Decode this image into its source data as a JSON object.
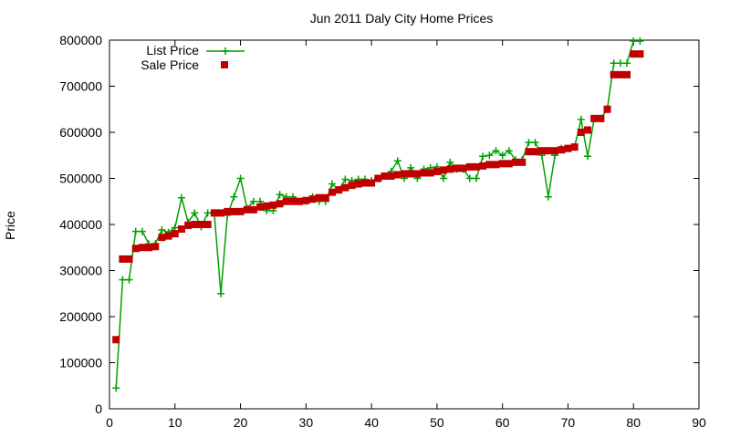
{
  "chart_data": {
    "type": "line",
    "title": "Jun 2011 Daly City Home Prices",
    "xlabel": "",
    "ylabel": "Price",
    "xlim": [
      0,
      90
    ],
    "ylim": [
      0,
      800000
    ],
    "xticks": [
      0,
      10,
      20,
      30,
      40,
      50,
      60,
      70,
      80,
      90
    ],
    "yticks": [
      0,
      100000,
      200000,
      300000,
      400000,
      500000,
      600000,
      700000,
      800000
    ],
    "grid": false,
    "legend_position": "top-left",
    "series": [
      {
        "name": "List Price",
        "kind": "line-with-points",
        "marker": "plus",
        "color": "#00a000",
        "x": [
          1,
          2,
          3,
          4,
          5,
          6,
          7,
          8,
          9,
          10,
          11,
          12,
          13,
          14,
          15,
          16,
          17,
          18,
          19,
          20,
          21,
          22,
          23,
          24,
          25,
          26,
          27,
          28,
          29,
          30,
          31,
          32,
          33,
          34,
          35,
          36,
          37,
          38,
          39,
          40,
          41,
          42,
          43,
          44,
          45,
          46,
          47,
          48,
          49,
          50,
          51,
          52,
          53,
          54,
          55,
          56,
          57,
          58,
          59,
          60,
          61,
          62,
          63,
          64,
          65,
          66,
          67,
          68,
          69,
          70,
          71,
          72,
          73,
          74,
          75,
          76,
          77,
          78,
          79,
          80,
          81
        ],
        "y": [
          45000,
          280000,
          280000,
          385000,
          385000,
          358000,
          358000,
          388000,
          383000,
          393000,
          458000,
          405000,
          425000,
          395000,
          425000,
          425000,
          250000,
          420000,
          460000,
          500000,
          435000,
          450000,
          450000,
          430000,
          430000,
          465000,
          460000,
          460000,
          450000,
          450000,
          460000,
          450000,
          450000,
          488000,
          475000,
          498000,
          495000,
          498000,
          498000,
          495000,
          500000,
          505000,
          515000,
          538000,
          500000,
          523000,
          500000,
          520000,
          523000,
          525000,
          500000,
          535000,
          520000,
          520000,
          500000,
          500000,
          548000,
          550000,
          560000,
          550000,
          560000,
          540000,
          540000,
          578000,
          578000,
          550000,
          460000,
          550000,
          565000,
          565000,
          568000,
          628000,
          548000,
          630000,
          630000,
          650000,
          750000,
          750000,
          750000,
          798000,
          798000
        ]
      },
      {
        "name": "Sale Price",
        "kind": "points",
        "marker": "square",
        "color": "#c00000",
        "x": [
          1,
          2,
          3,
          4,
          5,
          6,
          7,
          8,
          9,
          10,
          11,
          12,
          13,
          14,
          15,
          16,
          17,
          18,
          19,
          20,
          21,
          22,
          23,
          24,
          25,
          26,
          27,
          28,
          29,
          30,
          31,
          32,
          33,
          34,
          35,
          36,
          37,
          38,
          39,
          40,
          41,
          42,
          43,
          44,
          45,
          46,
          47,
          48,
          49,
          50,
          51,
          52,
          53,
          54,
          55,
          56,
          57,
          58,
          59,
          60,
          61,
          62,
          63,
          64,
          65,
          66,
          67,
          68,
          69,
          70,
          71,
          72,
          73,
          74,
          75,
          76,
          77,
          78,
          79,
          80,
          81
        ],
        "y": [
          150000,
          325000,
          325000,
          348000,
          350000,
          350000,
          352000,
          372000,
          375000,
          380000,
          390000,
          398000,
          400000,
          400000,
          400000,
          425000,
          425000,
          428000,
          428000,
          428000,
          432000,
          432000,
          438000,
          440000,
          442000,
          445000,
          450000,
          450000,
          450000,
          452000,
          455000,
          458000,
          458000,
          470000,
          475000,
          480000,
          485000,
          488000,
          490000,
          490000,
          500000,
          505000,
          505000,
          508000,
          510000,
          510000,
          510000,
          512000,
          512000,
          515000,
          518000,
          520000,
          522000,
          522000,
          525000,
          525000,
          527000,
          530000,
          530000,
          532000,
          532000,
          535000,
          535000,
          558000,
          558000,
          560000,
          560000,
          560000,
          562000,
          565000,
          568000,
          600000,
          605000,
          630000,
          630000,
          650000,
          725000,
          725000,
          725000,
          770000,
          770000
        ]
      }
    ]
  }
}
